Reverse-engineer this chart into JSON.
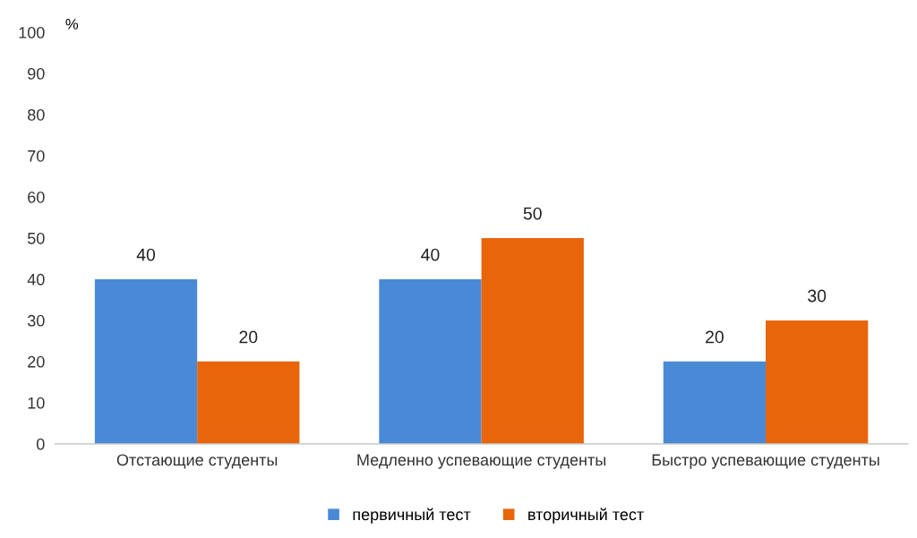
{
  "chart_data": {
    "type": "bar",
    "ylabel": "%",
    "categories": [
      "Отстающие студенты",
      "Медленно успевающие студенты",
      "Быстро успевающие студенты"
    ],
    "series": [
      {
        "name": "первичный тест",
        "color": "#4a89d6",
        "values": [
          40,
          40,
          20
        ]
      },
      {
        "name": "вторичный тест",
        "color": "#e8650a",
        "values": [
          20,
          50,
          30
        ]
      }
    ],
    "ylim": [
      0,
      100
    ],
    "yticks": [
      0,
      10,
      20,
      30,
      40,
      50,
      60,
      70,
      80,
      90,
      100
    ],
    "data_labels": true,
    "grid": false,
    "legend": "bottom"
  }
}
